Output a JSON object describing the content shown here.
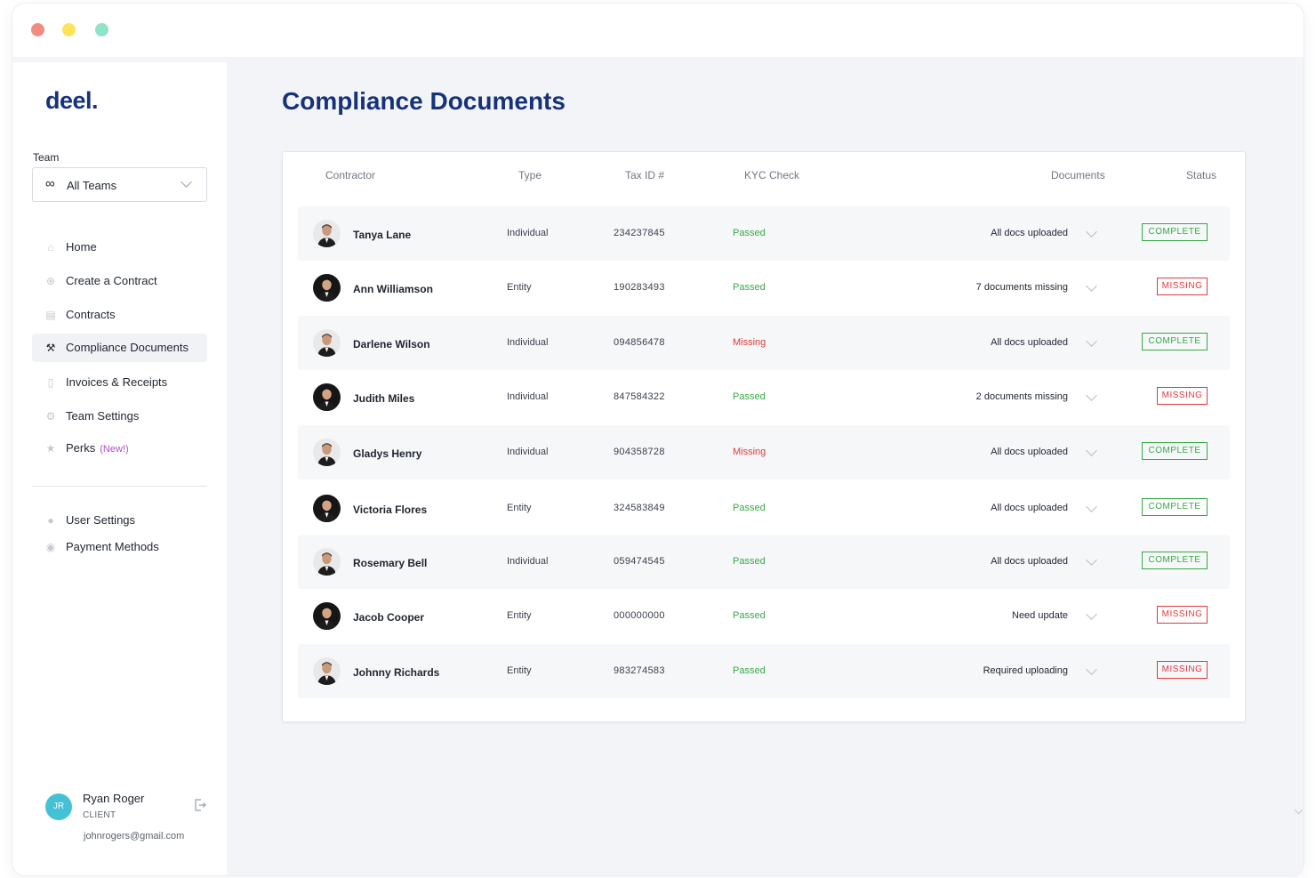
{
  "app": {
    "logo": "deel.",
    "window_dots": [
      "close",
      "minimize",
      "zoom"
    ]
  },
  "sidebar": {
    "team_label": "Team",
    "team_select": {
      "icon": "infinity-icon",
      "value": "All Teams"
    },
    "items": [
      {
        "label": "Home",
        "icon": "home-icon"
      },
      {
        "label": "Create a Contract",
        "icon": "plus-circle-icon"
      },
      {
        "label": "Contracts",
        "icon": "document-icon"
      },
      {
        "label": "Compliance Documents",
        "icon": "gavel-icon",
        "active": true
      },
      {
        "label": "Invoices & Receipts",
        "icon": "receipt-icon"
      },
      {
        "label": "Team Settings",
        "icon": "gear-icon"
      },
      {
        "label": "Perks",
        "badge": "(New!)",
        "icon": "star-icon"
      }
    ],
    "secondary_items": [
      {
        "label": "User Settings",
        "icon": "user-icon"
      },
      {
        "label": "Payment Methods",
        "icon": "payment-icon"
      }
    ],
    "user": {
      "initials": "JR",
      "name": "Ryan Roger",
      "role": "CLIENT",
      "email": "johnrogers@gmail.com"
    }
  },
  "main": {
    "title": "Compliance Documents",
    "columns": [
      "Contractor",
      "Type",
      "Tax ID #",
      "KYC Check",
      "Documents",
      "Status"
    ],
    "rows": [
      {
        "name": "Tanya Lane",
        "type": "Individual",
        "tax_id": "234237845",
        "kyc": "Passed",
        "documents": "All docs uploaded",
        "status": "COMPLETE"
      },
      {
        "name": "Ann Williamson",
        "type": "Entity",
        "tax_id": "190283493",
        "kyc": "Passed",
        "documents": "7 documents missing",
        "status": "MISSING"
      },
      {
        "name": "Darlene Wilson",
        "type": "Individual",
        "tax_id": "094856478",
        "kyc": "Missing",
        "documents": "All docs uploaded",
        "status": "COMPLETE"
      },
      {
        "name": "Judith Miles",
        "type": "Individual",
        "tax_id": "847584322",
        "kyc": "Passed",
        "documents": "2 documents missing",
        "status": "MISSING"
      },
      {
        "name": "Gladys Henry",
        "type": "Individual",
        "tax_id": "904358728",
        "kyc": "Missing",
        "documents": "All docs uploaded",
        "status": "COMPLETE"
      },
      {
        "name": "Victoria Flores",
        "type": "Entity",
        "tax_id": "324583849",
        "kyc": "Passed",
        "documents": "All docs uploaded",
        "status": "COMPLETE"
      },
      {
        "name": "Rosemary Bell",
        "type": "Individual",
        "tax_id": "059474545",
        "kyc": "Passed",
        "documents": "All docs uploaded",
        "status": "COMPLETE"
      },
      {
        "name": "Jacob Cooper",
        "type": "Entity",
        "tax_id": "000000000",
        "kyc": "Passed",
        "documents": "Need update",
        "status": "MISSING"
      },
      {
        "name": "Johnny Richards",
        "type": "Entity",
        "tax_id": "983274583",
        "kyc": "Passed",
        "documents": "Required uploading",
        "status": "MISSING"
      }
    ]
  },
  "colors": {
    "brand": "#16337a",
    "passed": "#37a945",
    "missing": "#e0393b",
    "perks_new": "#b04cc4",
    "user_avatar": "#45c1d6"
  }
}
